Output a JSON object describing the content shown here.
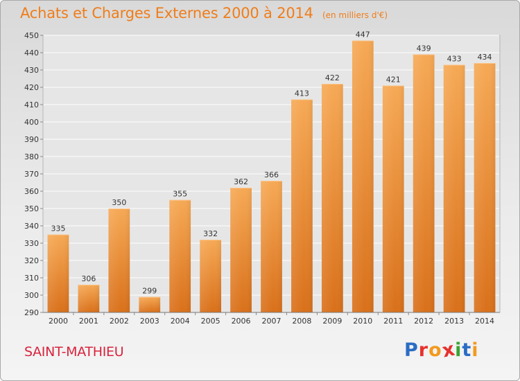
{
  "chart_data": {
    "type": "bar",
    "title": "Achats et Charges Externes 2000 à 2014",
    "subtitle": "(en milliers d'€)",
    "xlabel": "",
    "ylabel": "",
    "categories": [
      "2000",
      "2001",
      "2002",
      "2003",
      "2004",
      "2005",
      "2006",
      "2007",
      "2008",
      "2009",
      "2010",
      "2011",
      "2012",
      "2013",
      "2014"
    ],
    "values": [
      335,
      306,
      350,
      299,
      355,
      332,
      362,
      366,
      413,
      422,
      447,
      421,
      439,
      433,
      434
    ],
    "ylim": [
      290,
      450
    ],
    "yticks": [
      290,
      300,
      310,
      320,
      330,
      340,
      350,
      360,
      370,
      380,
      390,
      400,
      410,
      420,
      430,
      440,
      450
    ],
    "grid": true,
    "bar_color": "#f39c3d",
    "data_labels": true
  },
  "footer": {
    "commune": "SAINT-MATHIEU",
    "brand_letters": [
      "P",
      "r",
      "o",
      "x",
      "i",
      "t",
      "i"
    ],
    "brand_colors": [
      "#2a6cc4",
      "#e6312e",
      "#f29a1e",
      "#e6312e",
      "#3aa335",
      "#2a6cc4",
      "#f29a1e"
    ]
  },
  "colors": {
    "title": "#ef7d1a",
    "commune": "#d8233d",
    "grid": "#ffffff"
  }
}
